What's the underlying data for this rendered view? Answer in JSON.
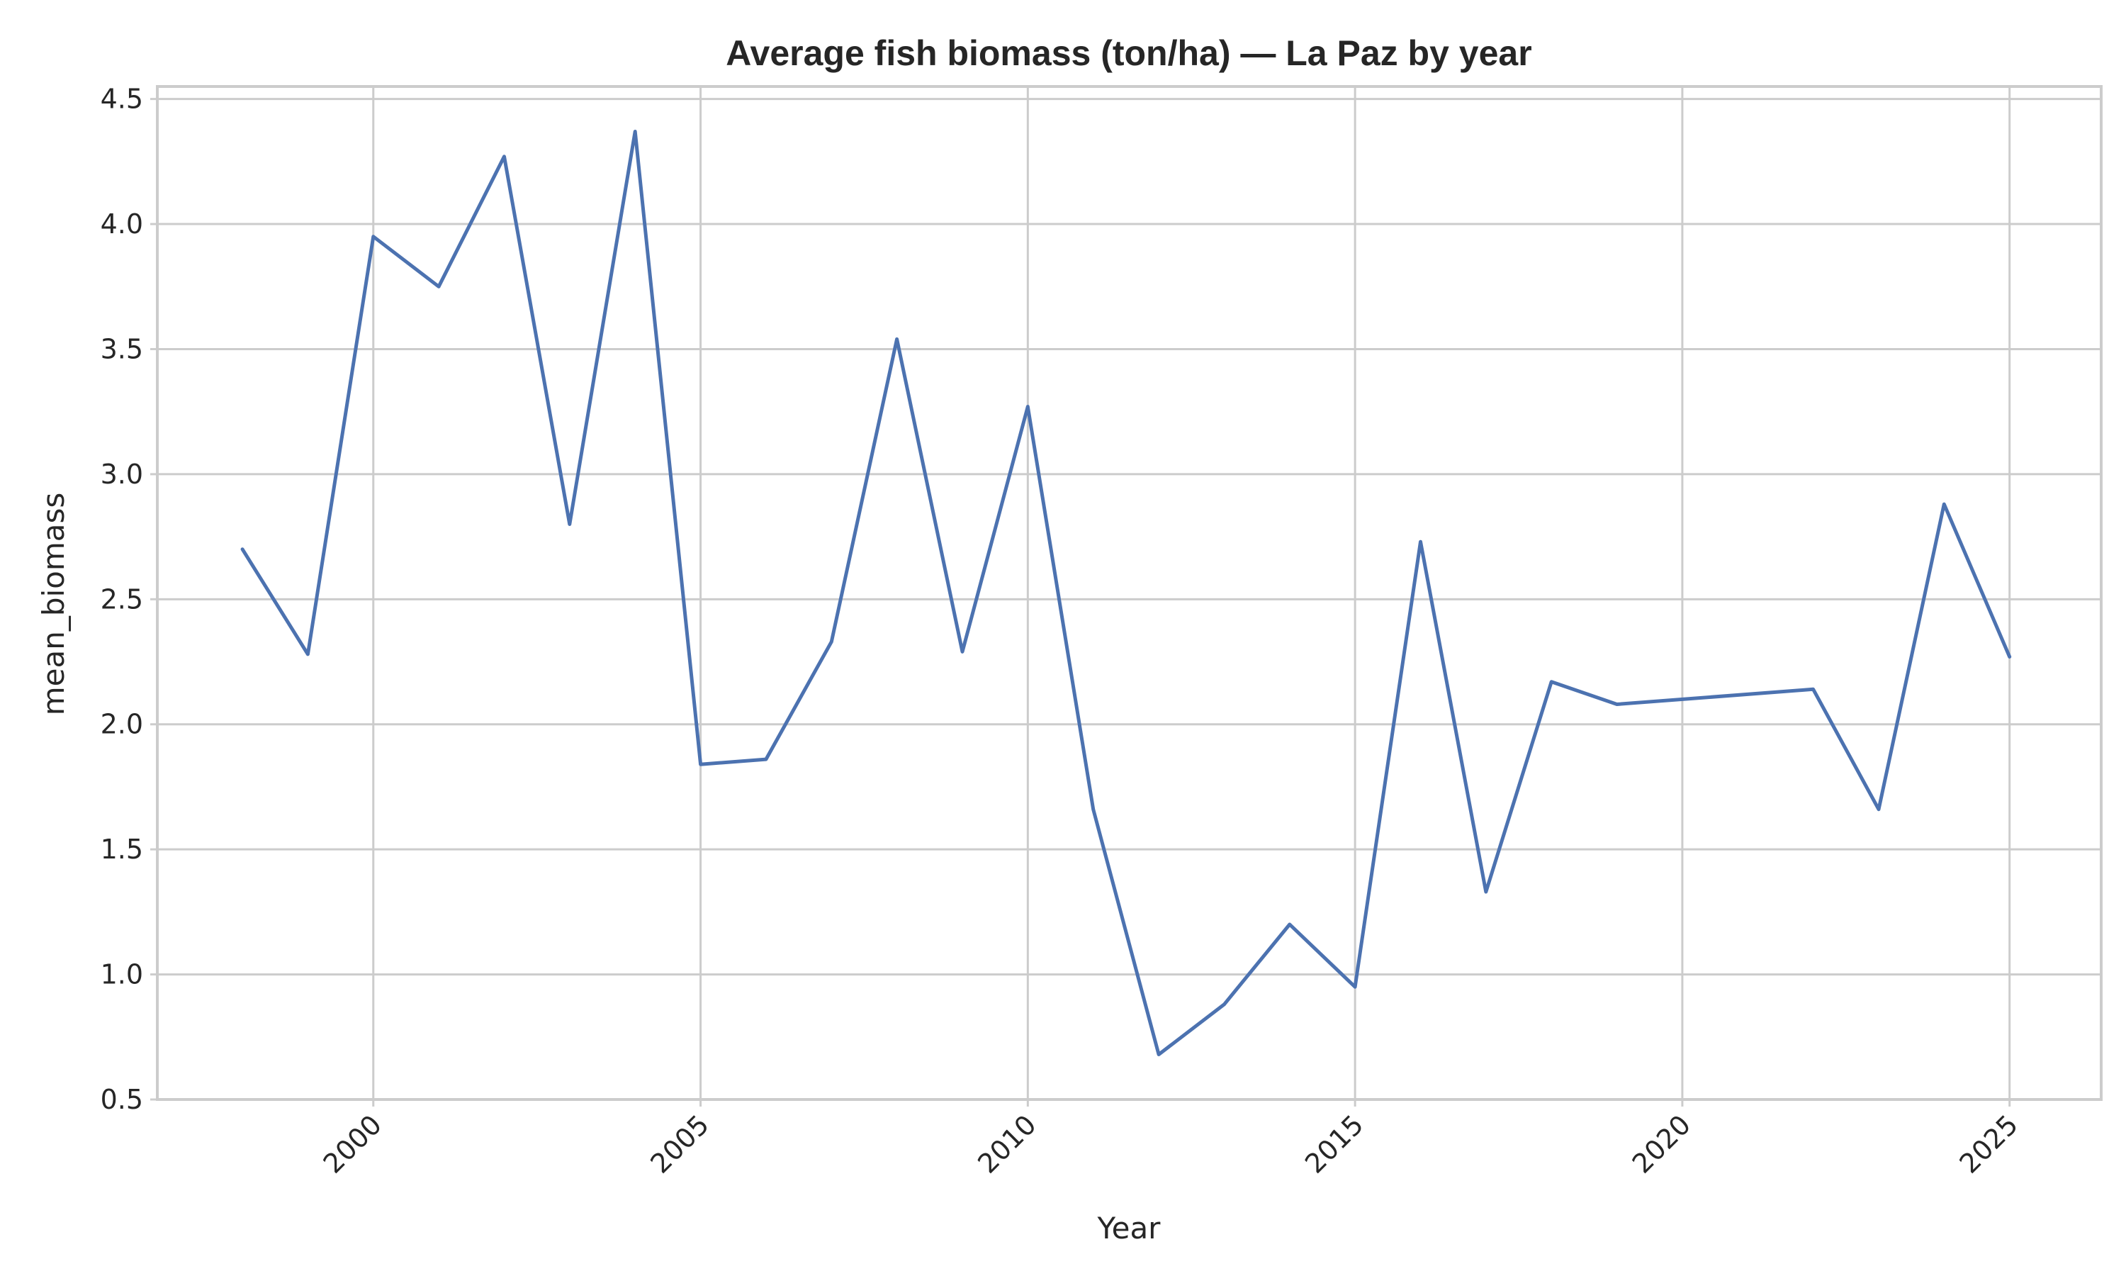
{
  "chart_data": {
    "type": "line",
    "title": "Average fish biomass (ton/ha) — La Paz by year",
    "xlabel": "Year",
    "ylabel": "mean_biomass",
    "xlim": [
      1996.7,
      2026.4
    ],
    "ylim": [
      0.5,
      4.55
    ],
    "x_ticks": [
      2000,
      2005,
      2010,
      2015,
      2020,
      2025
    ],
    "x_tick_labels": [
      "2000",
      "2005",
      "2010",
      "2015",
      "2020",
      "2025"
    ],
    "y_ticks": [
      0.5,
      1.0,
      1.5,
      2.0,
      2.5,
      3.0,
      3.5,
      4.0,
      4.5
    ],
    "y_tick_labels": [
      "0.5",
      "1.0",
      "1.5",
      "2.0",
      "2.5",
      "3.0",
      "3.5",
      "4.0",
      "4.5"
    ],
    "grid": true,
    "series": [
      {
        "name": "mean_biomass",
        "color": "#4c72b0",
        "x": [
          1998,
          1999,
          2000,
          2001,
          2002,
          2003,
          2004,
          2005,
          2006,
          2007,
          2008,
          2009,
          2010,
          2011,
          2012,
          2013,
          2014,
          2015,
          2016,
          2017,
          2018,
          2019,
          2022,
          2023,
          2024,
          2025
        ],
        "y": [
          2.7,
          2.28,
          3.95,
          3.75,
          4.27,
          2.8,
          4.37,
          1.84,
          1.86,
          2.33,
          3.54,
          2.29,
          3.27,
          1.66,
          0.68,
          0.88,
          1.2,
          0.95,
          2.73,
          1.33,
          2.17,
          2.08,
          2.14,
          1.66,
          2.88,
          2.27
        ]
      }
    ]
  }
}
